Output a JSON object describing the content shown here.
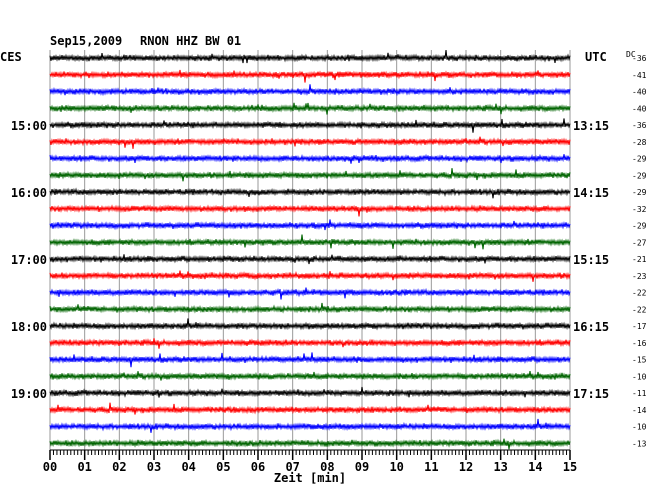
{
  "header": {
    "date": "Sep15,2009",
    "station": "RNON HHZ BW 01"
  },
  "left_axis_label": "CES",
  "right_axis_label": "UTC",
  "dc_label": "DC",
  "x_axis_label": "Zeit [min]",
  "trace_colors": [
    "#000000",
    "#ff0000",
    "#0000ff",
    "#006400"
  ],
  "chart_data": {
    "type": "line",
    "title": "Sep15,2009  RNON HHZ BW 01",
    "xlabel": "Zeit [min]",
    "xlim": [
      0,
      15
    ],
    "x_ticks": [
      "00",
      "01",
      "02",
      "03",
      "04",
      "05",
      "06",
      "07",
      "08",
      "09",
      "10",
      "11",
      "12",
      "13",
      "14",
      "15"
    ],
    "left_time_labels": [
      {
        "row": 4,
        "label": "15:00"
      },
      {
        "row": 8,
        "label": "16:00"
      },
      {
        "row": 12,
        "label": "17:00"
      },
      {
        "row": 16,
        "label": "18:00"
      },
      {
        "row": 20,
        "label": "19:00"
      }
    ],
    "right_time_labels": [
      {
        "row": 4,
        "label": "13:15"
      },
      {
        "row": 8,
        "label": "14:15"
      },
      {
        "row": 12,
        "label": "15:15"
      },
      {
        "row": 16,
        "label": "16:15"
      },
      {
        "row": 20,
        "label": "17:15"
      }
    ],
    "dc_offsets": [
      "-36",
      "-41",
      "-40",
      "-40",
      "-36",
      "-28",
      "-29",
      "-29",
      "-29",
      "-32",
      "-29",
      "-27",
      "-21",
      "-23",
      "-22",
      "-22",
      "-17",
      "-16",
      "-15",
      "-10",
      "-11",
      "-14",
      "-10",
      "-13"
    ],
    "trace_count": 24
  }
}
